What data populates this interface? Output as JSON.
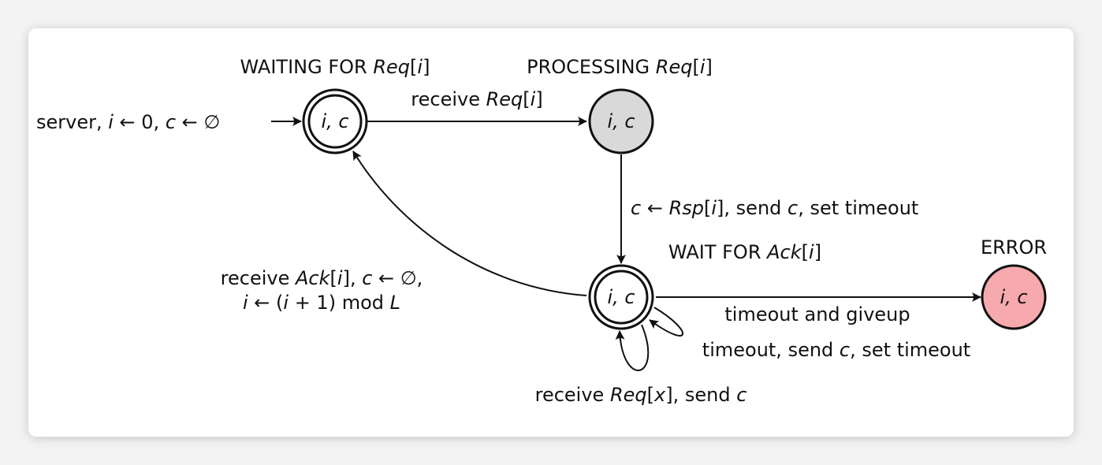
{
  "states": {
    "waiting": {
      "title_plain": "WAITING FOR ",
      "title_ital": "Req",
      "title_bracket_open": "[",
      "title_index": "i",
      "title_bracket_close": "]",
      "label": "i, c",
      "accepting": true,
      "fill": "#ffffff"
    },
    "processing": {
      "title_plain": "PROCESSING ",
      "title_ital": "Req",
      "title_bracket_open": "[",
      "title_index": "i",
      "title_bracket_close": "]",
      "label": "i, c",
      "accepting": false,
      "fill": "#d9d9d9"
    },
    "wait_ack": {
      "title_plain": "WAIT FOR ",
      "title_ital": "Ack",
      "title_bracket_open": "[",
      "title_index": "i",
      "title_bracket_close": "]",
      "label": "i, c",
      "accepting": true,
      "fill": "#ffffff"
    },
    "error": {
      "title_plain": "ERROR",
      "label": "i, c",
      "accepting": false,
      "fill": "#f7aaae"
    }
  },
  "edges": {
    "start": {
      "t1": "server, ",
      "t2": "i",
      "t3": " ← 0, ",
      "t4": "c",
      "t5": " ← ∅"
    },
    "receive_req": {
      "t1": "receive ",
      "t2": "Req",
      "t3": "[",
      "t4": "i",
      "t5": "]"
    },
    "rsp": {
      "t1": "c",
      "t2": " ← ",
      "t3": "Rsp",
      "t4": "[",
      "t5": "i",
      "t6": "], send ",
      "t7": "c",
      "t8": ", set timeout"
    },
    "ack": {
      "line1": {
        "t1": "receive ",
        "t2": "Ack",
        "t3": "[",
        "t4": "i",
        "t5": "], ",
        "t6": "c",
        "t7": " ← ∅,"
      },
      "line2": {
        "t1": "i",
        "t2": " ← (",
        "t3": "i",
        "t4": " + 1)  mod  ",
        "t5": "L"
      }
    },
    "giveup": {
      "t1": "timeout and giveup"
    },
    "resend": {
      "t1": "timeout, send ",
      "t2": "c",
      "t3": ", set timeout"
    },
    "req_x": {
      "t1": "receive ",
      "t2": "Req",
      "t3": "[",
      "t4": "x",
      "t5": "], send ",
      "t6": "c"
    }
  }
}
